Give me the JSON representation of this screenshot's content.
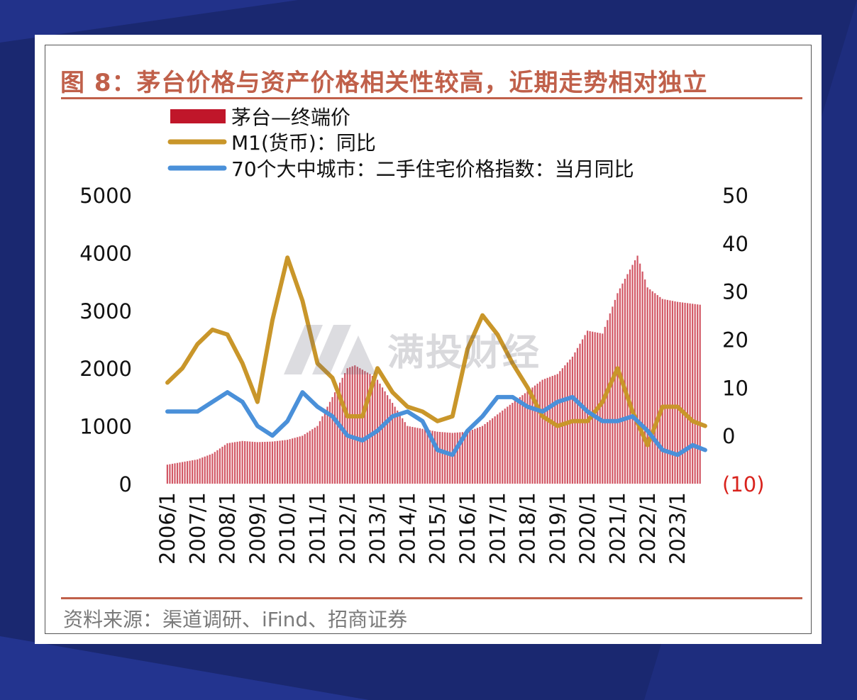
{
  "title": "图 8：茅台价格与资产价格相关性较高，近期走势相对独立",
  "source": "资料来源：渠道调研、iFind、招商证券",
  "watermark": "满投财经",
  "colors": {
    "bar": "#c0162a",
    "m1": "#c9962a",
    "housing": "#4a90d9",
    "title": "#c0604a",
    "negative_tick": "#d9231d"
  },
  "chart_data": {
    "type": "bar",
    "x_ticks": [
      "2006/1",
      "2007/1",
      "2008/1",
      "2009/1",
      "2010/1",
      "2011/1",
      "2012/1",
      "2013/1",
      "2014/1",
      "2015/1",
      "2016/1",
      "2017/1",
      "2018/1",
      "2019/1",
      "2020/1",
      "2021/1",
      "2022/1",
      "2023/1"
    ],
    "y_left": {
      "ylim": [
        0,
        5000
      ],
      "ticks": [
        "0",
        "1000",
        "2000",
        "3000",
        "4000",
        "5000"
      ]
    },
    "y_right": {
      "ylim": [
        -10,
        50
      ],
      "ticks": [
        "(10)",
        "0",
        "10",
        "20",
        "30",
        "40",
        "50"
      ]
    },
    "series": [
      {
        "name": "茅台—终端价",
        "type": "bar",
        "axis": "left",
        "points": [
          [
            "2006/1",
            330
          ],
          [
            "2007/1",
            420
          ],
          [
            "2007/7",
            520
          ],
          [
            "2008/1",
            700
          ],
          [
            "2008/7",
            740
          ],
          [
            "2009/1",
            720
          ],
          [
            "2009/7",
            730
          ],
          [
            "2010/1",
            760
          ],
          [
            "2010/7",
            830
          ],
          [
            "2011/1",
            1000
          ],
          [
            "2011/7",
            1500
          ],
          [
            "2012/1",
            2000
          ],
          [
            "2012/4",
            2050
          ],
          [
            "2012/10",
            1900
          ],
          [
            "2013/1",
            1800
          ],
          [
            "2013/7",
            1400
          ],
          [
            "2014/1",
            1000
          ],
          [
            "2014/7",
            950
          ],
          [
            "2015/1",
            900
          ],
          [
            "2015/7",
            880
          ],
          [
            "2016/1",
            900
          ],
          [
            "2016/7",
            1000
          ],
          [
            "2017/1",
            1200
          ],
          [
            "2017/7",
            1400
          ],
          [
            "2018/1",
            1600
          ],
          [
            "2018/7",
            1800
          ],
          [
            "2019/1",
            1900
          ],
          [
            "2019/7",
            2200
          ],
          [
            "2020/1",
            2650
          ],
          [
            "2020/7",
            2600
          ],
          [
            "2021/1",
            3300
          ],
          [
            "2021/4",
            3550
          ],
          [
            "2021/9",
            3950
          ],
          [
            "2022/1",
            3400
          ],
          [
            "2022/7",
            3200
          ],
          [
            "2023/1",
            3150
          ],
          [
            "2023/10",
            3100
          ]
        ]
      },
      {
        "name": "M1(货币)：同比",
        "type": "line",
        "axis": "right",
        "points": [
          [
            "2006/1",
            11
          ],
          [
            "2006/7",
            14
          ],
          [
            "2007/1",
            19
          ],
          [
            "2007/7",
            22
          ],
          [
            "2008/1",
            21
          ],
          [
            "2008/7",
            15
          ],
          [
            "2009/1",
            7
          ],
          [
            "2009/7",
            24
          ],
          [
            "2010/1",
            37
          ],
          [
            "2010/7",
            28
          ],
          [
            "2011/1",
            15
          ],
          [
            "2011/7",
            12
          ],
          [
            "2012/1",
            4
          ],
          [
            "2012/7",
            4
          ],
          [
            "2013/1",
            14
          ],
          [
            "2013/7",
            9
          ],
          [
            "2014/1",
            6
          ],
          [
            "2014/7",
            5
          ],
          [
            "2015/1",
            3
          ],
          [
            "2015/7",
            4
          ],
          [
            "2016/1",
            18
          ],
          [
            "2016/7",
            25
          ],
          [
            "2017/1",
            21
          ],
          [
            "2017/7",
            15
          ],
          [
            "2018/1",
            10
          ],
          [
            "2018/7",
            4
          ],
          [
            "2019/1",
            2
          ],
          [
            "2019/7",
            3
          ],
          [
            "2020/1",
            3
          ],
          [
            "2020/7",
            7
          ],
          [
            "2021/1",
            14
          ],
          [
            "2021/7",
            5
          ],
          [
            "2022/1",
            -2
          ],
          [
            "2022/7",
            6
          ],
          [
            "2023/1",
            6
          ],
          [
            "2023/7",
            3
          ],
          [
            "2023/12",
            2
          ]
        ]
      },
      {
        "name": "70个大中城市：二手住宅价格指数：当月同比",
        "type": "line",
        "axis": "right",
        "points": [
          [
            "2006/1",
            5
          ],
          [
            "2006/7",
            5
          ],
          [
            "2007/1",
            5
          ],
          [
            "2007/7",
            7
          ],
          [
            "2008/1",
            9
          ],
          [
            "2008/7",
            7
          ],
          [
            "2009/1",
            2
          ],
          [
            "2009/7",
            0
          ],
          [
            "2010/1",
            3
          ],
          [
            "2010/7",
            9
          ],
          [
            "2011/1",
            6
          ],
          [
            "2011/7",
            4
          ],
          [
            "2012/1",
            0
          ],
          [
            "2012/7",
            -1
          ],
          [
            "2013/1",
            1
          ],
          [
            "2013/7",
            4
          ],
          [
            "2014/1",
            5
          ],
          [
            "2014/7",
            3
          ],
          [
            "2015/1",
            -3
          ],
          [
            "2015/7",
            -4
          ],
          [
            "2016/1",
            1
          ],
          [
            "2016/7",
            4
          ],
          [
            "2017/1",
            8
          ],
          [
            "2017/7",
            8
          ],
          [
            "2018/1",
            6
          ],
          [
            "2018/7",
            5
          ],
          [
            "2019/1",
            7
          ],
          [
            "2019/7",
            8
          ],
          [
            "2020/1",
            5
          ],
          [
            "2020/7",
            3
          ],
          [
            "2021/1",
            3
          ],
          [
            "2021/7",
            4
          ],
          [
            "2022/1",
            1
          ],
          [
            "2022/7",
            -3
          ],
          [
            "2023/1",
            -4
          ],
          [
            "2023/7",
            -2
          ],
          [
            "2023/12",
            -3
          ]
        ]
      }
    ]
  }
}
